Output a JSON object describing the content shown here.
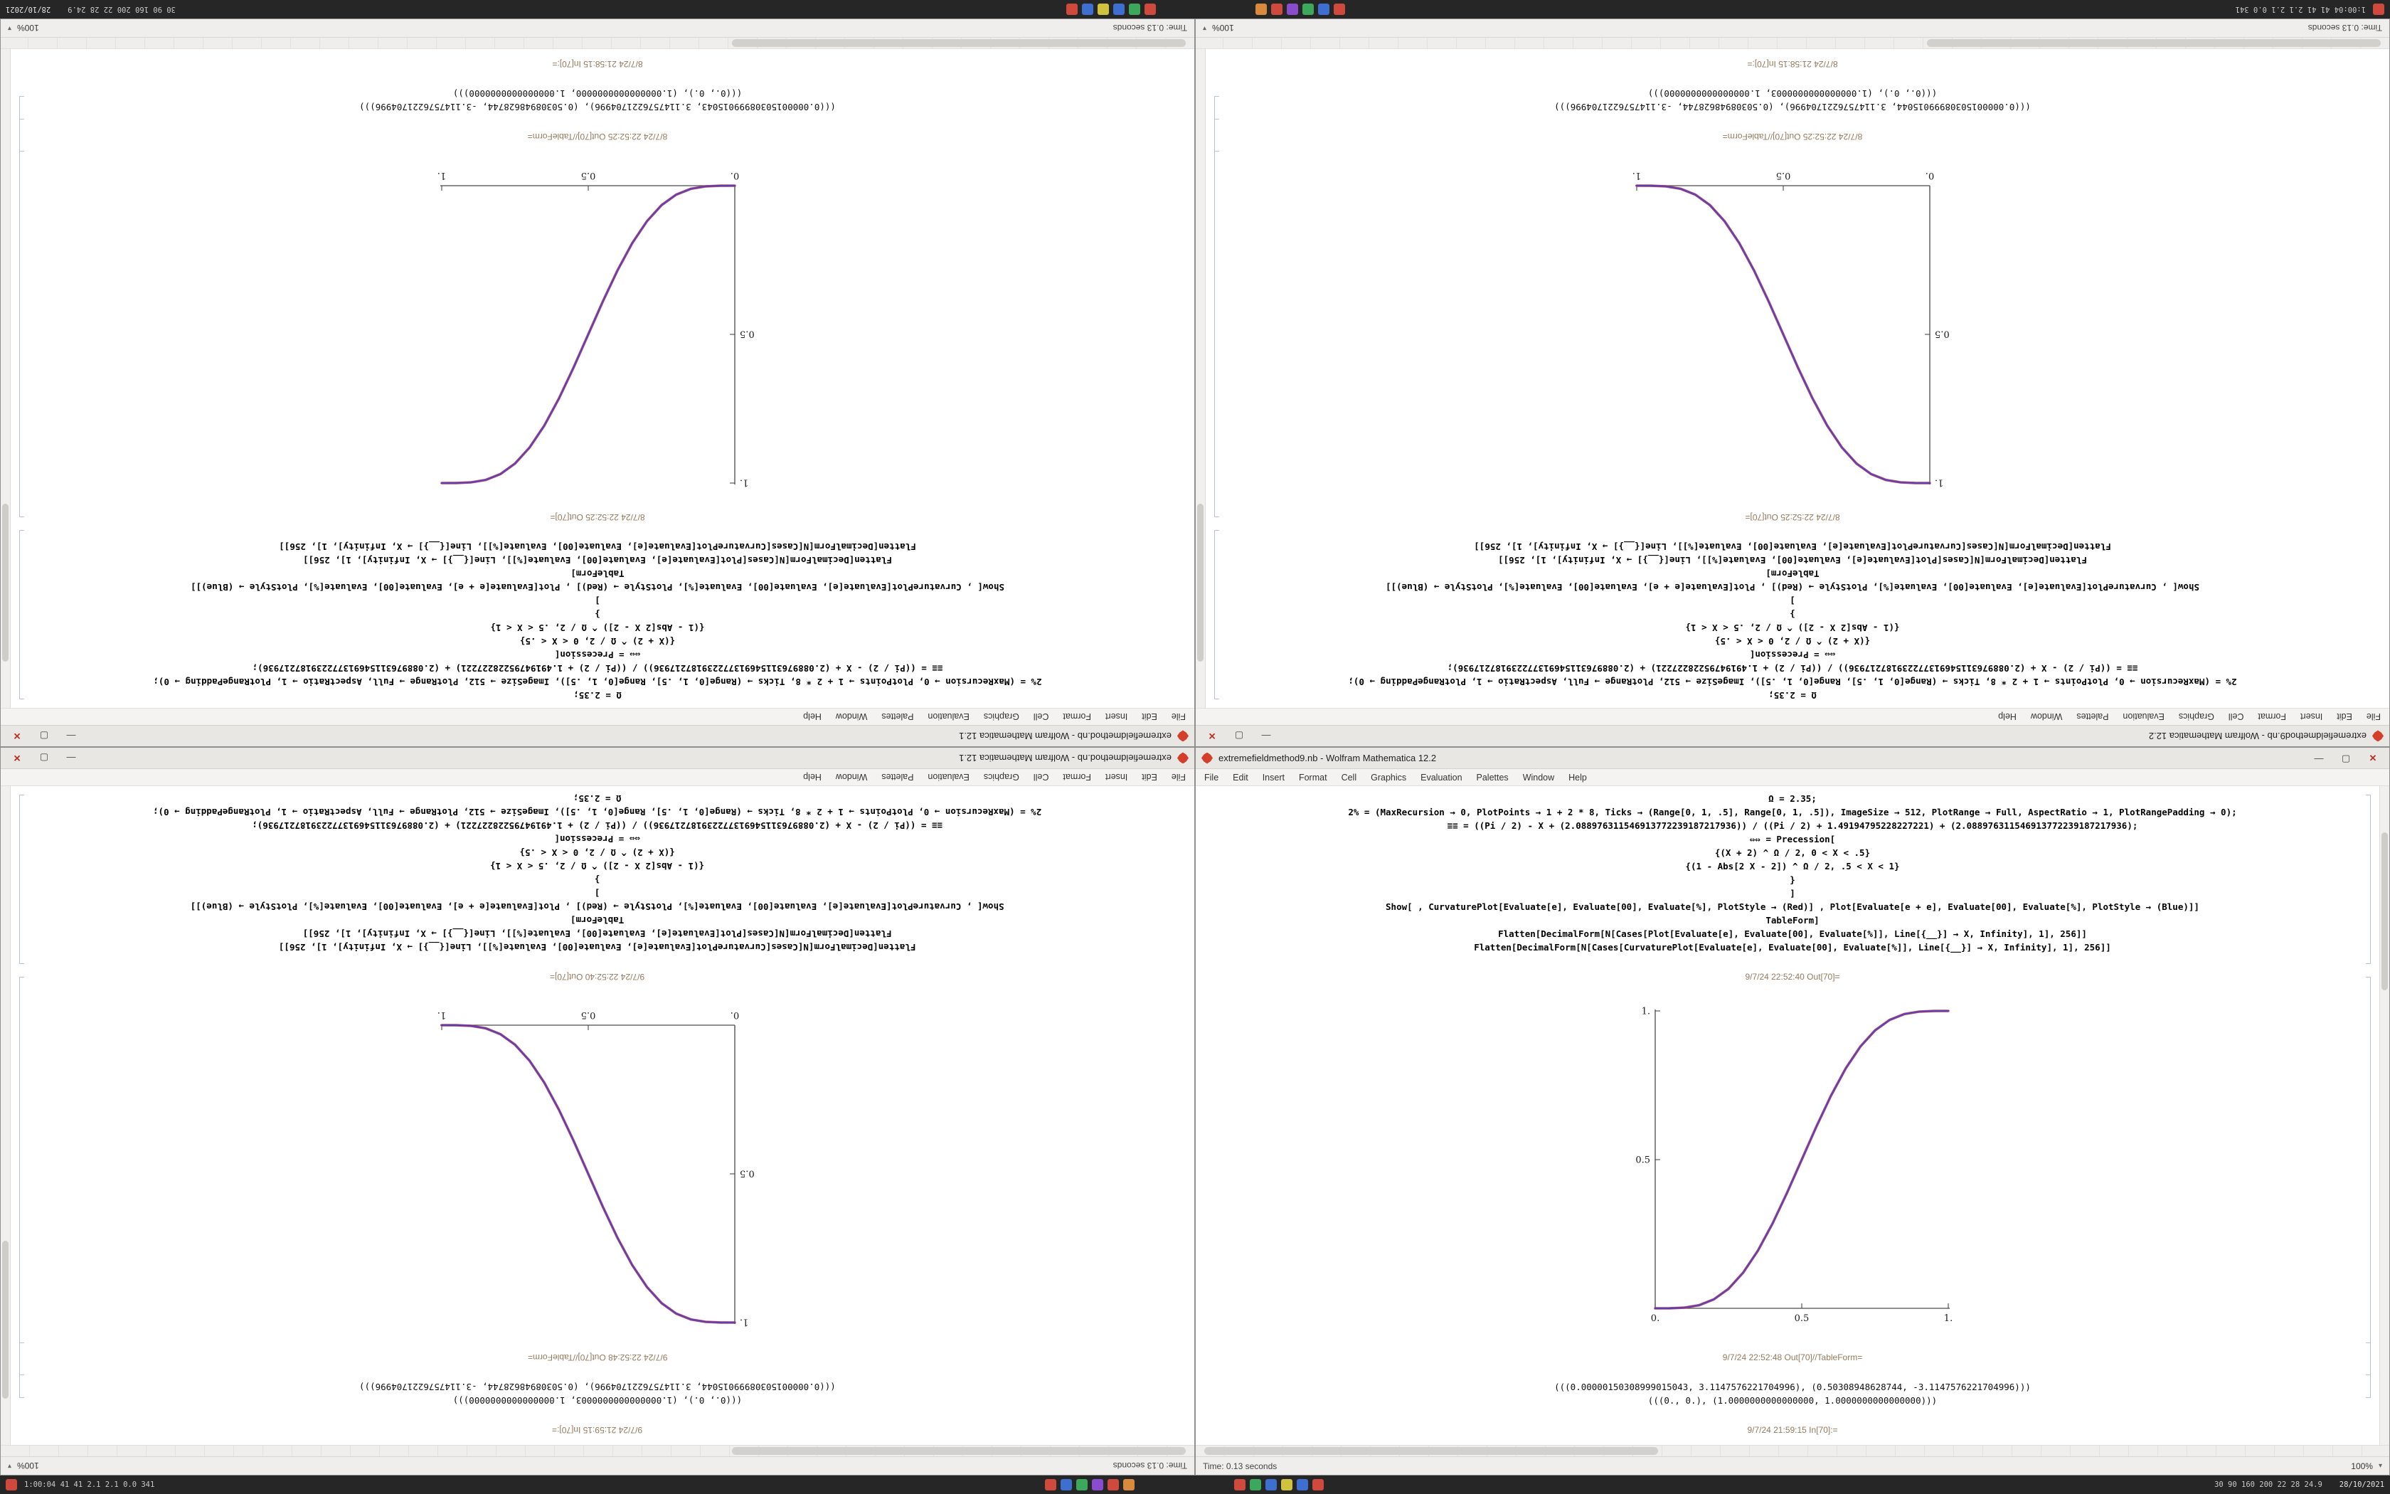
{
  "taskbar": {
    "left_text": "1:00:04 41 41 2.1 2.1 0.0 341",
    "right_text": "30 90 160 200 22 28 24.9",
    "clock": "28/10/2021",
    "cluster1": [
      "#cf4a3c",
      "#3c6fcf",
      "#3ca85c",
      "#8a4ccf",
      "#cf4a3c",
      "#d98a3c"
    ],
    "cluster2": [
      "#cf4a3c",
      "#3ca85c",
      "#3c6fcf",
      "#cfc23c",
      "#3c6fcf",
      "#cf4a3c"
    ]
  },
  "menu": {
    "items": [
      "File",
      "Edit",
      "Insert",
      "Format",
      "Cell",
      "Graphics",
      "Evaluation",
      "Palettes",
      "Window",
      "Help"
    ]
  },
  "window_controls": {
    "minimize": "—",
    "maximize": "▢",
    "close": "✕"
  },
  "status": {
    "time": "Time: 0.13 seconds",
    "zoom": "100%"
  },
  "notebooks": {
    "A": {
      "cells": [
        "Ω = 2.35;",
        "2% = (MaxRecursion → 0, PlotPoints → 1 + 2 * 8, Ticks → (Range[0, 1, .5], Range[0, 1, .5]), ImageSize → 512, PlotRange → Full, AspectRatio → 1, PlotRangePadding → 0);",
        "≡≡ = ((Pi / 2) - X + (2.088976311546913772239187217936)) / ((Pi / 2) + 1.49194795228227221) + (2.088976311546913772239187217936);",
        "⇔⇔ = Precession[",
        "{(X + 2) ^ Ω / 2, 0 < X < .5}",
        "{(1 - Abs[2 X - 2]) ^ Ω / 2, .5 < X < 1}",
        "}",
        "]",
        "Show[ , CurvaturePlot[Evaluate[e], Evaluate[00], Evaluate[%], PlotStyle → (Red)] , Plot[Evaluate[e + e], Evaluate[00], Evaluate[%], PlotStyle → (Blue)]]",
        "TableForm]",
        "Flatten[DecimalForm[N[Cases[Plot[Evaluate[e], Evaluate[00], Evaluate[%]], Line[{__}] → X, Infinity], 1], 256]]",
        "Flatten[DecimalForm[N[Cases[CurvaturePlot[Evaluate[e], Evaluate[00], Evaluate[%]], Line[{__}] → X, Infinity], 1], 256]]"
      ],
      "numbers": [
        "(((0.00000150308999015043, 3.1147576221704996), (0.50308948628744, -3.1147576221704996)))",
        "(((0., 0.), (1.0000000000000000, 1.0000000000000000)))"
      ]
    },
    "B": {
      "cells": [
        "Ω = 2.35;",
        "2% = (MaxRecursion → 0, PlotPoints → 1 + 2 * 8, Ticks → (Range[0, 1, .5], Range[0, 1, .5]), ImageSize → 512, PlotRange → Full, AspectRatio → 1, PlotRangePadding → 0);",
        "≡≡ = ((Pi / 2) - X + (2.088976311546913772239187217936)) / ((Pi / 2) + 1.49194795228227221) + (2.088976311546913772239187217936);",
        "⇔⇔ = Precession[",
        "{(X + 2) ^ Ω / 2, 0 < X < .5}",
        "{(1 - Abs[2 X - 2]) ^ Ω / 2, .5 < X < 1}",
        "}",
        "]",
        "Show[ , CurvaturePlot[Evaluate[e], Evaluate[00], Evaluate[%], PlotStyle → (Red)] , Plot[Evaluate[e + e], Evaluate[00], Evaluate[%], PlotStyle → (Blue)]]",
        "TableForm]",
        "Flatten[DecimalForm[N[Cases[Plot[Evaluate[e], Evaluate[00], Evaluate[%]], Line[{__}] → X, Infinity], 1], 256]]",
        "Flatten[DecimalForm[N[Cases[CurvaturePlot[Evaluate[e], Evaluate[00], Evaluate[%]], Line[{__}] → X, Infinity], 1], 256]]"
      ],
      "numbers": [
        "(((0.00000150308999015044, 3.1147576221704996), (0.50308948628744, -3.1147576221704996)))",
        "(((0., 0.), (1.0000000000000003, 1.0000000000000000)))"
      ]
    }
  },
  "windows": [
    {
      "position": "top-left",
      "notebook": "A",
      "title": "extremefieldmethod.nb - Wolfram Mathematica 12.1",
      "in_label": "8/7/24 21:58:15 In[70]:=",
      "out_label": "8/7/24 22:52:25 Out[70]=",
      "table_label": "8/7/24 22:52:25 Out[70]//TableForm="
    },
    {
      "position": "top-right",
      "notebook": "B",
      "title": "extremefieldmethod9.nb - Wolfram Mathematica 12.2",
      "in_label": "8/7/24 21:58:15 In[70]:=",
      "out_label": "8/7/24 22:52:25 Out[70]=",
      "table_label": "8/7/24 22:52:25 Out[70]//TableForm="
    },
    {
      "position": "bottom-left",
      "notebook": "B",
      "title": "extremefieldmethod.nb - Wolfram Mathematica 12.1",
      "in_label": "9/7/24 21:59:15 In[70]:=",
      "out_label": "9/7/24 22:52:40 Out[70]=",
      "table_label": "9/7/24 22:52:48 Out[70]//TableForm="
    },
    {
      "position": "bottom-right",
      "notebook": "A",
      "title": "extremefieldmethod9.nb - Wolfram Mathematica 12.2",
      "in_label": "9/7/24 21:59:15 In[70]:=",
      "out_label": "9/7/24 22:52:40 Out[70]=",
      "table_label": "9/7/24 22:52:48 Out[70]//TableForm="
    }
  ],
  "chart_data": [
    {
      "type": "line",
      "title": "",
      "xlabel": "",
      "ylabel": "",
      "xlim": [
        0,
        1
      ],
      "ylim": [
        0,
        1
      ],
      "grid": false,
      "legend": "none",
      "x": [
        0,
        0.05,
        0.1,
        0.15,
        0.2,
        0.25,
        0.3,
        0.35,
        0.4,
        0.45,
        0.5,
        0.55,
        0.6,
        0.65,
        0.7,
        0.75,
        0.8,
        0.85,
        0.9,
        0.95,
        1
      ],
      "xticks": [
        [
          0,
          "0."
        ],
        [
          0.5,
          "0.5"
        ],
        [
          1,
          "1."
        ]
      ],
      "yticks": [
        [
          0.5,
          "0.5"
        ],
        [
          1,
          "1."
        ]
      ],
      "series": [
        {
          "name": "red",
          "color": "#d03a3a",
          "values": [
            0,
            0.0002,
            0.0023,
            0.0106,
            0.0302,
            0.0656,
            0.1198,
            0.1934,
            0.2845,
            0.3887,
            0.5,
            0.6113,
            0.7155,
            0.8066,
            0.8802,
            0.9344,
            0.9698,
            0.9894,
            0.9977,
            0.9998,
            1
          ]
        },
        {
          "name": "blue",
          "color": "#3a3ad0",
          "values": [
            0,
            0.0002,
            0.0023,
            0.0106,
            0.0302,
            0.0656,
            0.1198,
            0.1934,
            0.2845,
            0.3887,
            0.5,
            0.6113,
            0.7155,
            0.8066,
            0.8802,
            0.9344,
            0.9698,
            0.9894,
            0.9977,
            0.9998,
            1
          ]
        }
      ]
    },
    {
      "type": "line",
      "title": "",
      "xlabel": "",
      "ylabel": "",
      "xlim": [
        0,
        1
      ],
      "ylim": [
        0,
        1
      ],
      "grid": false,
      "legend": "none",
      "x": [
        0,
        0.05,
        0.1,
        0.15,
        0.2,
        0.25,
        0.3,
        0.35,
        0.4,
        0.45,
        0.5,
        0.55,
        0.6,
        0.65,
        0.7,
        0.75,
        0.8,
        0.85,
        0.9,
        0.95,
        1
      ],
      "xticks": [
        [
          0,
          "0."
        ],
        [
          0.5,
          "0.5"
        ],
        [
          1,
          "1."
        ]
      ],
      "yticks": [
        [
          0.5,
          "0.5"
        ],
        [
          1,
          "1."
        ]
      ],
      "series": [
        {
          "name": "red",
          "color": "#d03a3a",
          "values": [
            1,
            0.9998,
            0.9977,
            0.9894,
            0.9698,
            0.9344,
            0.8802,
            0.8066,
            0.7155,
            0.6113,
            0.5,
            0.3887,
            0.2845,
            0.1934,
            0.1198,
            0.0656,
            0.0302,
            0.0106,
            0.0023,
            0.0002,
            0
          ]
        },
        {
          "name": "blue",
          "color": "#3a3ad0",
          "values": [
            1,
            0.9998,
            0.9977,
            0.9894,
            0.9698,
            0.9344,
            0.8802,
            0.8066,
            0.7155,
            0.6113,
            0.5,
            0.3887,
            0.2845,
            0.1934,
            0.1198,
            0.0656,
            0.0302,
            0.0106,
            0.0023,
            0.0002,
            0
          ]
        }
      ]
    }
  ]
}
